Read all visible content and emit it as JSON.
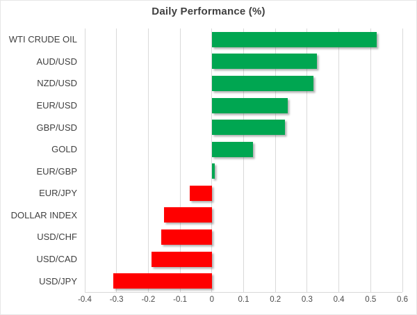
{
  "chart_data": {
    "type": "bar",
    "orientation": "horizontal",
    "title": "Daily Performance (%)",
    "categories": [
      "WTI CRUDE OIL",
      "AUD/USD",
      "NZD/USD",
      "EUR/USD",
      "GBP/USD",
      "GOLD",
      "EUR/GBP",
      "EUR/JPY",
      "DOLLAR INDEX",
      "USD/CHF",
      "USD/CAD",
      "USD/JPY"
    ],
    "values": [
      0.52,
      0.33,
      0.32,
      0.24,
      0.23,
      0.13,
      0.01,
      -0.07,
      -0.15,
      -0.16,
      -0.19,
      -0.31
    ],
    "xlabel": "",
    "ylabel": "",
    "xlim": [
      -0.4,
      0.6
    ],
    "xticks": [
      {
        "value": -0.4,
        "label": "-0.4"
      },
      {
        "value": -0.3,
        "label": "-0.3"
      },
      {
        "value": -0.2,
        "label": "-0.2"
      },
      {
        "value": -0.1,
        "label": "-0.1"
      },
      {
        "value": 0,
        "label": "0"
      },
      {
        "value": 0.1,
        "label": "0.1"
      },
      {
        "value": 0.2,
        "label": "0.2"
      },
      {
        "value": 0.3,
        "label": "0.3"
      },
      {
        "value": 0.4,
        "label": "0.4"
      },
      {
        "value": 0.5,
        "label": "0.5"
      },
      {
        "value": 0.6,
        "label": "0.6"
      }
    ],
    "grid": true,
    "legend": false,
    "colors": {
      "positive": "#00A651",
      "negative": "#FF0000",
      "gridline": "#D9D9D9",
      "title_text": "#3F3F3F",
      "label_text": "#404040",
      "tick_text": "#4A4A4A"
    }
  }
}
